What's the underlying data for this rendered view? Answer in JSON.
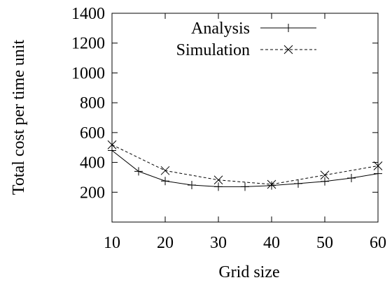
{
  "chart_data": {
    "type": "line",
    "title": "",
    "xlabel": "Grid size",
    "ylabel": "Total cost per time unit",
    "xlim": [
      10,
      60
    ],
    "ylim": [
      0,
      1400
    ],
    "x_ticks": [
      10,
      20,
      30,
      40,
      50,
      60
    ],
    "y_ticks": [
      200,
      400,
      600,
      800,
      1000,
      1200,
      1400
    ],
    "grid": false,
    "legend_position": "top-right",
    "series": [
      {
        "name": "Analysis",
        "line_style": "solid",
        "marker": "plus",
        "color": "#000000",
        "x": [
          10,
          15,
          20,
          25,
          30,
          35,
          40,
          45,
          50,
          55,
          60
        ],
        "y": [
          480,
          340,
          275,
          248,
          237,
          237,
          245,
          258,
          273,
          295,
          325
        ]
      },
      {
        "name": "Simulation",
        "line_style": "dashed",
        "marker": "cross",
        "color": "#000000",
        "x": [
          10,
          20,
          30,
          40,
          50,
          60
        ],
        "y": [
          518,
          345,
          282,
          253,
          315,
          377
        ]
      }
    ]
  }
}
